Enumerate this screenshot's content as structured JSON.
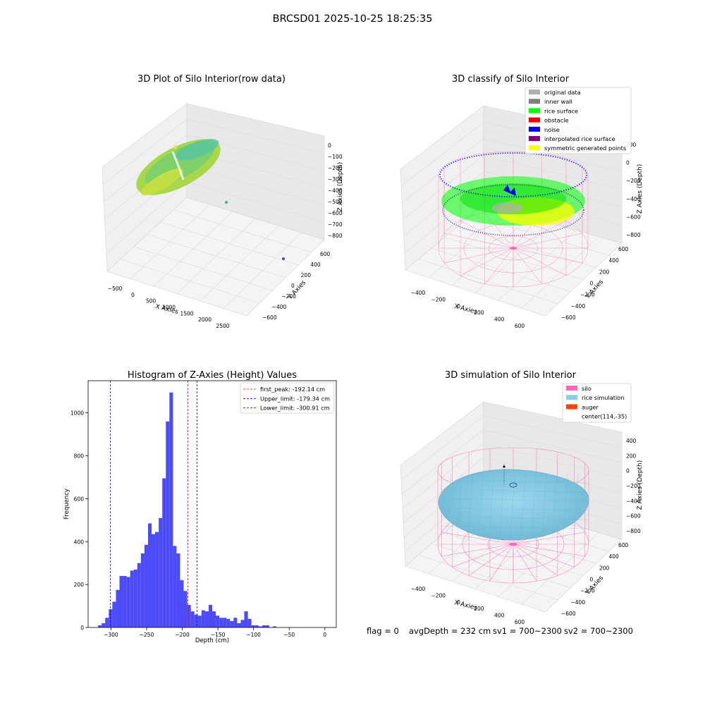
{
  "figure": {
    "suptitle": "BRCSD01 2025-10-25 18:25:35"
  },
  "status": {
    "flag": "flag = 0",
    "avg_depth": "avgDepth = 232 cm",
    "sv1": "sv1 = 700~2300",
    "sv2": "sv2 = 700~2300"
  },
  "colors": {
    "histogram_bar": "#4b4bf7",
    "first_peak_line": "#ff0000",
    "limit_lines": "#0000ff",
    "silo_wire": "#ff69b4",
    "rice_simulation": "#87ceeb",
    "auger": "#ff4500",
    "original_data": "#b0b0b0",
    "inner_wall": "#808080",
    "rice_surface": "#00ff00",
    "obstacle": "#ff0000",
    "noise": "#0000ff",
    "interpolated_rice_surface": "#800080",
    "symmetric_generated_points": "#ffff00"
  },
  "panels": {
    "raw": {
      "title": "3D Plot of Silo Interior(row data)",
      "xlabel": "X Axies",
      "ylabel": "Y Axies",
      "zlabel": "Z Axies (Depth)",
      "xticks": [
        "−500",
        "0",
        "500",
        "1000",
        "1500",
        "2000",
        "2500"
      ],
      "yticks": [
        "600",
        "400",
        "200",
        "0",
        "−200",
        "−400",
        "−600"
      ],
      "zticks": [
        "0",
        "−100",
        "−200",
        "−300",
        "−400",
        "−500",
        "−600",
        "−700",
        "−800"
      ]
    },
    "classify": {
      "title": "3D classify of Silo Interior",
      "xlabel": "X Axies",
      "ylabel": "Y Axies",
      "zlabel": "Z Axies (Depth)",
      "xticks": [
        "−400",
        "−200",
        "0",
        "200",
        "400",
        "600"
      ],
      "yticks": [
        "600",
        "400",
        "200",
        "0",
        "−200",
        "−400",
        "−600"
      ],
      "zticks": [
        "200",
        "0",
        "−200",
        "−400",
        "−600",
        "−800"
      ],
      "legend": [
        {
          "label": "original data",
          "color": "#b0b0b0"
        },
        {
          "label": "inner wall",
          "color": "#808080"
        },
        {
          "label": "rice surface",
          "color": "#00ff00"
        },
        {
          "label": "obstacle",
          "color": "#ff0000"
        },
        {
          "label": "noise",
          "color": "#0000ff"
        },
        {
          "label": "interpolated rice surface",
          "color": "#800080"
        },
        {
          "label": "symmetric generated points",
          "color": "#ffff00"
        }
      ]
    },
    "simulation": {
      "title": "3D simulation of Silo Interior",
      "xlabel": "X Axies",
      "ylabel": "Y Axies",
      "zlabel": "Z Axies (Depth)",
      "xticks": [
        "−400",
        "−200",
        "0",
        "200",
        "400",
        "600"
      ],
      "yticks": [
        "600",
        "400",
        "200",
        "0",
        "−200",
        "−400",
        "−600"
      ],
      "zticks": [
        "400",
        "200",
        "0",
        "−200",
        "−400",
        "−600",
        "−800"
      ],
      "legend": [
        {
          "label": "silo",
          "color": "#ff69b4"
        },
        {
          "label": "rice simulation",
          "color": "#87ceeb"
        },
        {
          "label": "auger",
          "color": "#ff4500"
        },
        {
          "label": "center(114,-35)",
          "color": null
        }
      ]
    }
  },
  "chart_data": [
    {
      "type": "bar",
      "title": "Histogram of Z-Axies (Height) Values",
      "xlabel": "Depth (cm)",
      "ylabel": "Frequency",
      "xlim": [
        -332,
        16
      ],
      "ylim": [
        0,
        1150
      ],
      "xticks": [
        -300,
        -250,
        -200,
        -150,
        -100,
        -50,
        0
      ],
      "xtick_labels": [
        "−300",
        "−250",
        "−200",
        "−150",
        "−100",
        "−50",
        "0"
      ],
      "yticks": [
        0,
        200,
        400,
        600,
        800,
        1000
      ],
      "bins": {
        "start": -318,
        "width": 5
      },
      "values": [
        10,
        20,
        45,
        85,
        120,
        175,
        240,
        240,
        235,
        265,
        270,
        300,
        345,
        385,
        485,
        435,
        445,
        510,
        695,
        960,
        1095,
        380,
        345,
        220,
        170,
        105,
        75,
        60,
        55,
        80,
        75,
        105,
        75,
        55,
        45,
        45,
        40,
        30,
        45,
        20,
        35,
        75,
        40,
        10,
        10,
        5,
        10,
        10,
        0,
        5
      ],
      "vlines": [
        {
          "label": "first_peak: -192.14 cm",
          "x": -192.14,
          "color": "#ff0000"
        },
        {
          "label": "Upper_limit: -179.34 cm",
          "x": -179.34,
          "color": "#0000ff"
        },
        {
          "label": "Lower_limit: -300.91 cm",
          "x": -300.91,
          "color": "#0000ff"
        }
      ],
      "legend_position": "upper right",
      "grid": false
    }
  ]
}
